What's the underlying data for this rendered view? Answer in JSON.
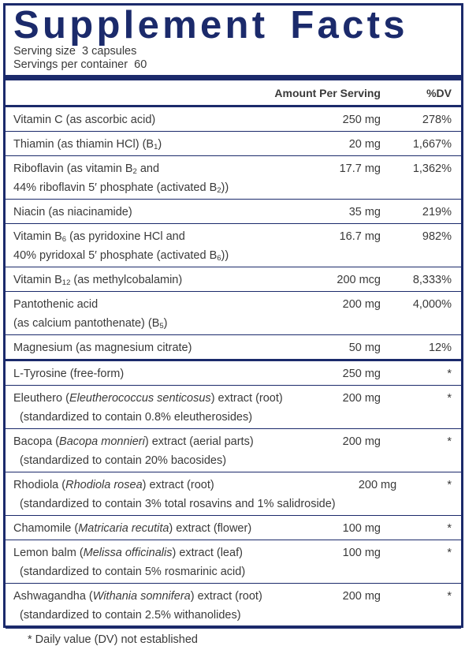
{
  "header": {
    "title": "Supplement Facts",
    "serving_size": "Serving size  3 capsules",
    "servings_per_container": "Servings per container  60"
  },
  "table": {
    "columns": [
      "Amount Per Serving",
      "%DV"
    ],
    "sections": [
      {
        "rows": [
          {
            "name": [
              [
                "Vitamin C (as ascorbic acid)"
              ]
            ],
            "amount": "250 mg",
            "dv": "278%"
          },
          {
            "name": [
              [
                "Thiamin (as thiamin HCl) (B",
                {
                  "text": "1",
                  "style": "sub"
                },
                ")"
              ]
            ],
            "amount": "20 mg",
            "dv": "1,667%"
          },
          {
            "name": [
              [
                "Riboflavin (as vitamin B",
                {
                  "text": "2",
                  "style": "sub"
                },
                " and"
              ],
              [
                "44% riboflavin 5′ phosphate (activated B",
                {
                  "text": "2",
                  "style": "sub"
                },
                "))"
              ]
            ],
            "amount": "17.7 mg",
            "dv": "1,362%"
          },
          {
            "name": [
              [
                "Niacin (as niacinamide)"
              ]
            ],
            "amount": "35 mg",
            "dv": "219%"
          },
          {
            "name": [
              [
                "Vitamin B",
                {
                  "text": "6",
                  "style": "sub"
                },
                " (as pyridoxine HCl and"
              ],
              [
                "40% pyridoxal 5′ phosphate (activated B",
                {
                  "text": "6",
                  "style": "sub"
                },
                "))"
              ]
            ],
            "amount": "16.7 mg",
            "dv": "982%"
          },
          {
            "name": [
              [
                "Vitamin B",
                {
                  "text": "12",
                  "style": "sub"
                },
                " (as methylcobalamin)"
              ]
            ],
            "amount": "200 mcg",
            "dv": "8,333%"
          },
          {
            "name": [
              [
                "Pantothenic acid"
              ],
              [
                "(as calcium pantothenate) (B",
                {
                  "text": "5",
                  "style": "sub"
                },
                ")"
              ]
            ],
            "amount": "200 mg",
            "dv": "4,000%"
          },
          {
            "name": [
              [
                "Magnesium (as magnesium citrate)"
              ]
            ],
            "amount": "50 mg",
            "dv": "12%"
          }
        ]
      },
      {
        "rows": [
          {
            "name": [
              [
                "L-Tyrosine (free-form)"
              ]
            ],
            "amount": "250 mg",
            "dv": "*"
          },
          {
            "name": [
              [
                "Eleuthero (",
                {
                  "text": "Eleutherococcus senticosus",
                  "style": "italic"
                },
                ") extract (root)"
              ],
              [
                "  (standardized to contain 0.8% eleutherosides)"
              ]
            ],
            "amount": "200 mg",
            "dv": "*"
          },
          {
            "name": [
              [
                "Bacopa (",
                {
                  "text": "Bacopa monnieri",
                  "style": "italic"
                },
                ") extract (aerial parts)"
              ],
              [
                "  (standardized to contain 20% bacosides)"
              ]
            ],
            "amount": "200 mg",
            "dv": "*"
          },
          {
            "name": [
              [
                "Rhodiola (",
                {
                  "text": "Rhodiola rosea",
                  "style": "italic"
                },
                ") extract (root)"
              ],
              [
                "  (standardized to contain 3% total rosavins and 1% salidroside)"
              ]
            ],
            "amount": "200 mg",
            "dv": "*"
          },
          {
            "name": [
              [
                "Chamomile (",
                {
                  "text": "Matricaria recutita",
                  "style": "italic"
                },
                ") extract (flower)"
              ]
            ],
            "amount": "100 mg",
            "dv": "*"
          },
          {
            "name": [
              [
                "Lemon balm (",
                {
                  "text": "Melissa officinalis",
                  "style": "italic"
                },
                ") extract (leaf)"
              ],
              [
                "  (standardized to contain 5% rosmarinic acid)"
              ]
            ],
            "amount": "100 mg",
            "dv": "*"
          },
          {
            "name": [
              [
                "Ashwagandha (",
                {
                  "text": "Withania somnifera",
                  "style": "italic"
                },
                ") extract (root)"
              ],
              [
                "  (standardized to contain 2.5% withanolides)"
              ]
            ],
            "amount": "200 mg",
            "dv": "*"
          }
        ]
      }
    ]
  },
  "footnote": "* Daily value (DV) not established"
}
